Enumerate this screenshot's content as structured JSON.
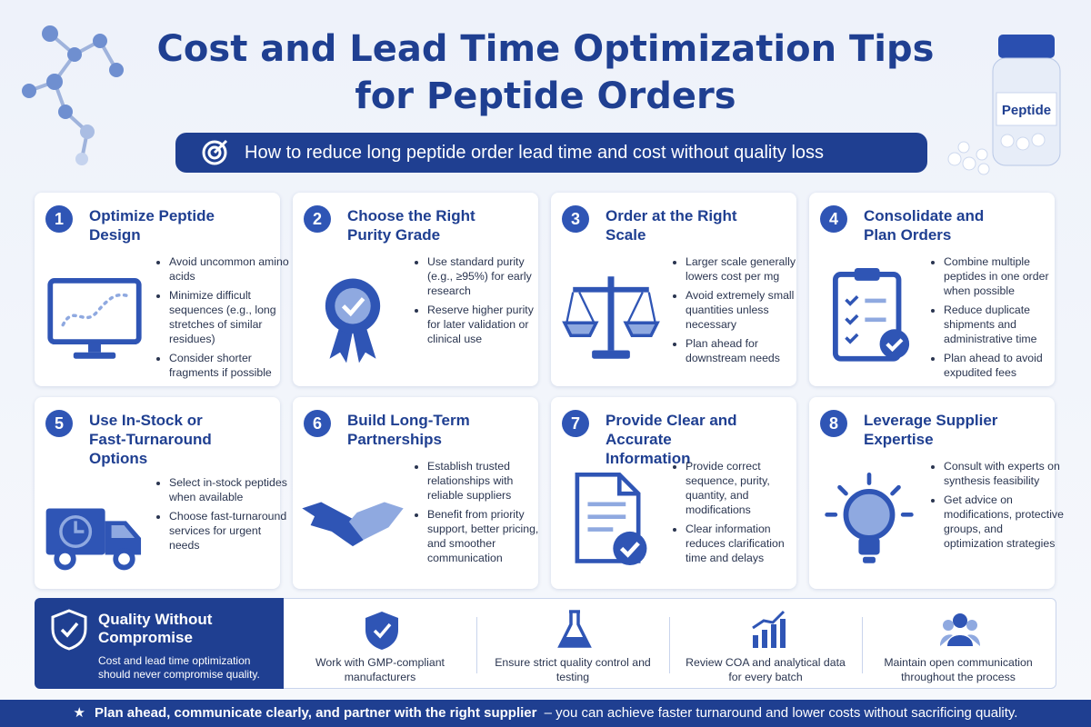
{
  "header": {
    "title_lines": [
      "Cost and Lead Time Optimization Tips",
      "for Peptide Orders"
    ],
    "subtitle": "How to reduce long peptide order lead time and cost without quality loss",
    "bottle_label": "Peptide"
  },
  "tips": [
    {
      "number": 1,
      "title": "Optimize Peptide Design",
      "bullets": [
        "Avoid uncommon amino acids",
        "Minimize difficult sequences (e.g., long stretches of similar residues)",
        "Consider shorter fragments if possible"
      ]
    },
    {
      "number": 2,
      "title": "Choose the Right Purity Grade",
      "bullets": [
        "Use standard purity (e.g., ≥95%) for early research",
        "Reserve higher purity for later validation or clinical use"
      ]
    },
    {
      "number": 3,
      "title": "Order at the Right Scale",
      "bullets": [
        "Larger scale generally lowers cost per mg",
        "Avoid extremely small quantities unless necessary",
        "Plan ahead for downstream needs"
      ]
    },
    {
      "number": 4,
      "title": "Consolidate and Plan Orders",
      "bullets": [
        "Combine multiple peptides in one order when possible",
        "Reduce duplicate shipments and administrative time",
        "Plan ahead to avoid expudited fees"
      ]
    },
    {
      "number": 5,
      "title": "Use In-Stock or Fast-Turnaround Options",
      "bullets": [
        "Select in-stock peptides when available",
        "Choose fast-turnaround services for urgent needs"
      ]
    },
    {
      "number": 6,
      "title": "Build Long-Term Partnerships",
      "bullets": [
        "Establish trusted relationships with reliable suppliers",
        "Benefit from priority support, better pricing, and smoother communication"
      ]
    },
    {
      "number": 7,
      "title": "Provide Clear and Accurate Information",
      "bullets": [
        "Provide correct sequence, purity, quantity, and modifications",
        "Clear information reduces clarification time and delays"
      ]
    },
    {
      "number": 8,
      "title": "Leverage Supplier Expertise",
      "bullets": [
        "Consult with experts on synthesis feasibility",
        "Get advice on modifications, protective groups, and optimization strategies"
      ]
    }
  ],
  "quality": {
    "title": "Quality Without Compromise",
    "text": "Cost and lead time optimization should never compromise quality.",
    "items": [
      "Work with GMP-compliant manufacturers",
      "Ensure strict quality control and testing",
      "Review COA and analytical data for every batch",
      "Maintain open communication throughout the process"
    ]
  },
  "footer": {
    "emphasis": "Plan ahead, communicate clearly, and partner with the right supplier",
    "rest": "– you can achieve faster turnaround and lower costs without sacrificing quality."
  }
}
